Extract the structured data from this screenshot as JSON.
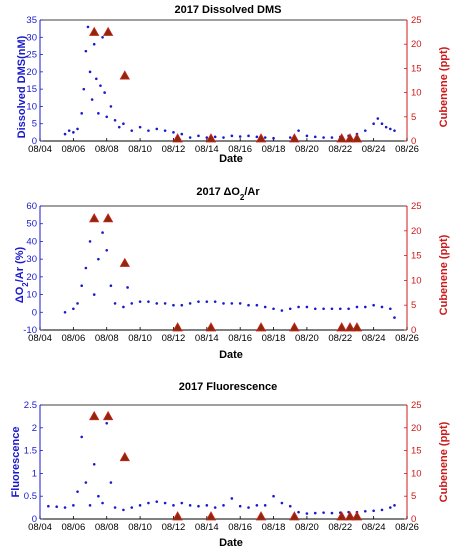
{
  "chart_data": [
    {
      "type": "scatter",
      "title": "2017 Dissolved DMS",
      "xlabel": "Date",
      "ylabel": "Dissolved DMS(nM)",
      "y2label": "Cubenene (ppt)",
      "x_ticks": [
        "08/04",
        "08/06",
        "08/08",
        "08/10",
        "08/12",
        "08/14",
        "08/16",
        "08/18",
        "08/20",
        "08/22",
        "08/24",
        "08/26"
      ],
      "y_ticks": [
        "0",
        "5",
        "10",
        "15",
        "20",
        "25",
        "30",
        "35"
      ],
      "y2_ticks": [
        "0",
        "5",
        "10",
        "15",
        "20",
        "25"
      ],
      "xlim": [
        "08/04",
        "08/26"
      ],
      "ylim": [
        0,
        35
      ],
      "y2lim": [
        0,
        25
      ],
      "colors": {
        "left": "#1a1acc",
        "right": "#cc1a1a",
        "marker_fill": "#8b2a0a",
        "marker_edge": "#cc2222"
      },
      "series": [
        {
          "axis": "left",
          "values": [
            {
              "x": "08/05 12:00",
              "y": 2
            },
            {
              "x": "08/05 18:00",
              "y": 3
            },
            {
              "x": "08/06 00:00",
              "y": 2.5
            },
            {
              "x": "08/06 06:00",
              "y": 3.5
            },
            {
              "x": "08/06 12:00",
              "y": 8
            },
            {
              "x": "08/06 15:00",
              "y": 15
            },
            {
              "x": "08/06 18:00",
              "y": 26
            },
            {
              "x": "08/06 21:00",
              "y": 33
            },
            {
              "x": "08/07 00:00",
              "y": 20
            },
            {
              "x": "08/07 03:00",
              "y": 12
            },
            {
              "x": "08/07 06:00",
              "y": 28
            },
            {
              "x": "08/07 09:00",
              "y": 18
            },
            {
              "x": "08/07 12:00",
              "y": 8
            },
            {
              "x": "08/07 15:00",
              "y": 16
            },
            {
              "x": "08/07 18:00",
              "y": 30
            },
            {
              "x": "08/07 21:00",
              "y": 14
            },
            {
              "x": "08/08 00:00",
              "y": 7
            },
            {
              "x": "08/08 06:00",
              "y": 10
            },
            {
              "x": "08/08 12:00",
              "y": 6
            },
            {
              "x": "08/08 18:00",
              "y": 4
            },
            {
              "x": "08/09 00:00",
              "y": 5
            },
            {
              "x": "08/09 12:00",
              "y": 3
            },
            {
              "x": "08/10 00:00",
              "y": 4
            },
            {
              "x": "08/10 12:00",
              "y": 3
            },
            {
              "x": "08/11 00:00",
              "y": 3.5
            },
            {
              "x": "08/11 12:00",
              "y": 3
            },
            {
              "x": "08/12 00:00",
              "y": 2.5
            },
            {
              "x": "08/12 12:00",
              "y": 2
            },
            {
              "x": "08/13 00:00",
              "y": 1
            },
            {
              "x": "08/13 12:00",
              "y": 1.5
            },
            {
              "x": "08/14 00:00",
              "y": 1
            },
            {
              "x": "08/14 12:00",
              "y": 1.2
            },
            {
              "x": "08/15 00:00",
              "y": 1
            },
            {
              "x": "08/15 12:00",
              "y": 1.5
            },
            {
              "x": "08/16 00:00",
              "y": 1.3
            },
            {
              "x": "08/16 12:00",
              "y": 1.5
            },
            {
              "x": "08/17 00:00",
              "y": 1.2
            },
            {
              "x": "08/17 12:00",
              "y": 1
            },
            {
              "x": "08/18 00:00",
              "y": 0.8
            },
            {
              "x": "08/19 00:00",
              "y": 1
            },
            {
              "x": "08/19 12:00",
              "y": 3
            },
            {
              "x": "08/20 00:00",
              "y": 1.5
            },
            {
              "x": "08/20 12:00",
              "y": 1.2
            },
            {
              "x": "08/21 00:00",
              "y": 1
            },
            {
              "x": "08/21 12:00",
              "y": 1
            },
            {
              "x": "08/22 00:00",
              "y": 1.2
            },
            {
              "x": "08/22 12:00",
              "y": 1.5
            },
            {
              "x": "08/23 00:00",
              "y": 2
            },
            {
              "x": "08/23 12:00",
              "y": 3
            },
            {
              "x": "08/24 00:00",
              "y": 5
            },
            {
              "x": "08/24 06:00",
              "y": 6.5
            },
            {
              "x": "08/24 12:00",
              "y": 5
            },
            {
              "x": "08/24 18:00",
              "y": 4
            },
            {
              "x": "08/25 00:00",
              "y": 3.5
            },
            {
              "x": "08/25 06:00",
              "y": 3
            }
          ]
        },
        {
          "axis": "right",
          "marker": "triangle",
          "values": [
            {
              "x": "08/07 06:00",
              "y": 22
            },
            {
              "x": "08/08 02:00",
              "y": 22
            },
            {
              "x": "08/09 02:00",
              "y": 13
            },
            {
              "x": "08/12 06:00",
              "y": 0
            },
            {
              "x": "08/14 06:00",
              "y": 0
            },
            {
              "x": "08/17 06:00",
              "y": 0
            },
            {
              "x": "08/19 06:00",
              "y": 0
            },
            {
              "x": "08/22 02:00",
              "y": 0
            },
            {
              "x": "08/22 14:00",
              "y": 0
            },
            {
              "x": "08/23 00:00",
              "y": 0
            }
          ]
        }
      ]
    },
    {
      "type": "scatter",
      "title": "2017 ΔO₂/Ar",
      "xlabel": "Date",
      "ylabel": "ΔO₂/Ar (%)",
      "y2label": "Cubenene (ppt)",
      "x_ticks": [
        "08/04",
        "08/06",
        "08/08",
        "08/10",
        "08/12",
        "08/14",
        "08/16",
        "08/18",
        "08/20",
        "08/22",
        "08/24",
        "08/26"
      ],
      "y_ticks": [
        "-10",
        "0",
        "10",
        "20",
        "30",
        "40",
        "50",
        "60"
      ],
      "y2_ticks": [
        "0",
        "5",
        "10",
        "15",
        "20",
        "25"
      ],
      "xlim": [
        "08/04",
        "08/26"
      ],
      "ylim": [
        -10,
        60
      ],
      "y2lim": [
        0,
        25
      ],
      "colors": {
        "left": "#1a1acc",
        "right": "#cc1a1a",
        "marker_fill": "#8b2a0a",
        "marker_edge": "#cc2222"
      },
      "series": [
        {
          "axis": "left",
          "values": [
            {
              "x": "08/05 12:00",
              "y": 0
            },
            {
              "x": "08/06 00:00",
              "y": 2
            },
            {
              "x": "08/06 06:00",
              "y": 5
            },
            {
              "x": "08/06 12:00",
              "y": 15
            },
            {
              "x": "08/06 18:00",
              "y": 25
            },
            {
              "x": "08/07 00:00",
              "y": 40
            },
            {
              "x": "08/07 06:00",
              "y": 10
            },
            {
              "x": "08/07 12:00",
              "y": 30
            },
            {
              "x": "08/07 18:00",
              "y": 45
            },
            {
              "x": "08/08 00:00",
              "y": 35
            },
            {
              "x": "08/08 06:00",
              "y": 15
            },
            {
              "x": "08/08 12:00",
              "y": 5
            },
            {
              "x": "08/09 00:00",
              "y": 3
            },
            {
              "x": "08/09 06:00",
              "y": 14
            },
            {
              "x": "08/09 12:00",
              "y": 5
            },
            {
              "x": "08/10 00:00",
              "y": 6
            },
            {
              "x": "08/10 12:00",
              "y": 6
            },
            {
              "x": "08/11 00:00",
              "y": 5
            },
            {
              "x": "08/11 12:00",
              "y": 5
            },
            {
              "x": "08/12 00:00",
              "y": 4
            },
            {
              "x": "08/12 12:00",
              "y": 4
            },
            {
              "x": "08/13 00:00",
              "y": 5
            },
            {
              "x": "08/13 12:00",
              "y": 6
            },
            {
              "x": "08/14 00:00",
              "y": 6
            },
            {
              "x": "08/14 12:00",
              "y": 6
            },
            {
              "x": "08/15 00:00",
              "y": 5
            },
            {
              "x": "08/15 12:00",
              "y": 5
            },
            {
              "x": "08/16 00:00",
              "y": 5
            },
            {
              "x": "08/16 12:00",
              "y": 4
            },
            {
              "x": "08/17 00:00",
              "y": 4
            },
            {
              "x": "08/17 12:00",
              "y": 3
            },
            {
              "x": "08/18 00:00",
              "y": 2
            },
            {
              "x": "08/18 12:00",
              "y": 1
            },
            {
              "x": "08/19 00:00",
              "y": 2
            },
            {
              "x": "08/19 12:00",
              "y": 3
            },
            {
              "x": "08/20 00:00",
              "y": 3
            },
            {
              "x": "08/20 12:00",
              "y": 2
            },
            {
              "x": "08/21 00:00",
              "y": 2
            },
            {
              "x": "08/21 12:00",
              "y": 2
            },
            {
              "x": "08/22 00:00",
              "y": 2
            },
            {
              "x": "08/22 12:00",
              "y": 2
            },
            {
              "x": "08/23 00:00",
              "y": 3
            },
            {
              "x": "08/23 12:00",
              "y": 3
            },
            {
              "x": "08/24 00:00",
              "y": 4
            },
            {
              "x": "08/24 12:00",
              "y": 3
            },
            {
              "x": "08/25 00:00",
              "y": 2
            },
            {
              "x": "08/25 06:00",
              "y": -3
            }
          ]
        },
        {
          "axis": "right",
          "marker": "triangle",
          "values": [
            {
              "x": "08/07 06:00",
              "y": 22
            },
            {
              "x": "08/08 02:00",
              "y": 22
            },
            {
              "x": "08/09 02:00",
              "y": 13
            },
            {
              "x": "08/12 06:00",
              "y": 0
            },
            {
              "x": "08/14 06:00",
              "y": 0
            },
            {
              "x": "08/17 06:00",
              "y": 0
            },
            {
              "x": "08/19 06:00",
              "y": 0
            },
            {
              "x": "08/22 02:00",
              "y": 0
            },
            {
              "x": "08/22 14:00",
              "y": 0
            },
            {
              "x": "08/23 00:00",
              "y": 0
            }
          ]
        }
      ]
    },
    {
      "type": "scatter",
      "title": "2017 Fluorescence",
      "xlabel": "Date",
      "ylabel": "Fluorescence",
      "y2label": "Cubenene (ppt)",
      "x_ticks": [
        "08/04",
        "08/06",
        "08/08",
        "08/10",
        "08/12",
        "08/14",
        "08/16",
        "08/18",
        "08/20",
        "08/22",
        "08/24",
        "08/26"
      ],
      "y_ticks": [
        "0",
        "0.5",
        "1",
        "1.5",
        "2",
        "2.5"
      ],
      "y2_ticks": [
        "0",
        "5",
        "10",
        "15",
        "20",
        "25"
      ],
      "xlim": [
        "08/04",
        "08/26"
      ],
      "ylim": [
        0,
        2.5
      ],
      "y2lim": [
        0,
        25
      ],
      "colors": {
        "left": "#1a1acc",
        "right": "#cc1a1a",
        "marker_fill": "#8b2a0a",
        "marker_edge": "#cc2222"
      },
      "series": [
        {
          "axis": "left",
          "values": [
            {
              "x": "08/04 12:00",
              "y": 0.28
            },
            {
              "x": "08/05 00:00",
              "y": 0.27
            },
            {
              "x": "08/05 12:00",
              "y": 0.25
            },
            {
              "x": "08/06 00:00",
              "y": 0.3
            },
            {
              "x": "08/06 06:00",
              "y": 0.6
            },
            {
              "x": "08/06 12:00",
              "y": 1.8
            },
            {
              "x": "08/06 18:00",
              "y": 0.8
            },
            {
              "x": "08/07 00:00",
              "y": 0.3
            },
            {
              "x": "08/07 06:00",
              "y": 1.2
            },
            {
              "x": "08/07 12:00",
              "y": 0.5
            },
            {
              "x": "08/07 18:00",
              "y": 0.35
            },
            {
              "x": "08/08 00:00",
              "y": 2.1
            },
            {
              "x": "08/08 06:00",
              "y": 0.8
            },
            {
              "x": "08/08 12:00",
              "y": 0.25
            },
            {
              "x": "08/09 00:00",
              "y": 0.2
            },
            {
              "x": "08/09 12:00",
              "y": 0.25
            },
            {
              "x": "08/10 00:00",
              "y": 0.3
            },
            {
              "x": "08/10 12:00",
              "y": 0.35
            },
            {
              "x": "08/11 00:00",
              "y": 0.38
            },
            {
              "x": "08/11 12:00",
              "y": 0.35
            },
            {
              "x": "08/12 00:00",
              "y": 0.3
            },
            {
              "x": "08/12 12:00",
              "y": 0.35
            },
            {
              "x": "08/13 00:00",
              "y": 0.3
            },
            {
              "x": "08/13 12:00",
              "y": 0.28
            },
            {
              "x": "08/14 00:00",
              "y": 0.3
            },
            {
              "x": "08/14 12:00",
              "y": 0.25
            },
            {
              "x": "08/15 00:00",
              "y": 0.3
            },
            {
              "x": "08/15 12:00",
              "y": 0.45
            },
            {
              "x": "08/16 00:00",
              "y": 0.28
            },
            {
              "x": "08/16 12:00",
              "y": 0.25
            },
            {
              "x": "08/17 00:00",
              "y": 0.3
            },
            {
              "x": "08/17 12:00",
              "y": 0.3
            },
            {
              "x": "08/18 00:00",
              "y": 0.5
            },
            {
              "x": "08/18 12:00",
              "y": 0.35
            },
            {
              "x": "08/19 00:00",
              "y": 0.28
            },
            {
              "x": "08/19 12:00",
              "y": 0.15
            },
            {
              "x": "08/20 00:00",
              "y": 0.12
            },
            {
              "x": "08/20 12:00",
              "y": 0.13
            },
            {
              "x": "08/21 00:00",
              "y": 0.14
            },
            {
              "x": "08/21 12:00",
              "y": 0.13
            },
            {
              "x": "08/22 00:00",
              "y": 0.14
            },
            {
              "x": "08/22 12:00",
              "y": 0.15
            },
            {
              "x": "08/23 00:00",
              "y": 0.15
            },
            {
              "x": "08/23 12:00",
              "y": 0.17
            },
            {
              "x": "08/24 00:00",
              "y": 0.18
            },
            {
              "x": "08/24 12:00",
              "y": 0.2
            },
            {
              "x": "08/25 00:00",
              "y": 0.25
            },
            {
              "x": "08/25 06:00",
              "y": 0.3
            }
          ]
        },
        {
          "axis": "right",
          "marker": "triangle",
          "values": [
            {
              "x": "08/07 06:00",
              "y": 22
            },
            {
              "x": "08/08 02:00",
              "y": 22
            },
            {
              "x": "08/09 02:00",
              "y": 13
            },
            {
              "x": "08/12 06:00",
              "y": 0
            },
            {
              "x": "08/14 06:00",
              "y": 0
            },
            {
              "x": "08/17 06:00",
              "y": 0
            },
            {
              "x": "08/19 06:00",
              "y": 0
            },
            {
              "x": "08/22 02:00",
              "y": 0
            },
            {
              "x": "08/22 14:00",
              "y": 0
            },
            {
              "x": "08/23 00:00",
              "y": 0
            }
          ]
        }
      ]
    }
  ]
}
